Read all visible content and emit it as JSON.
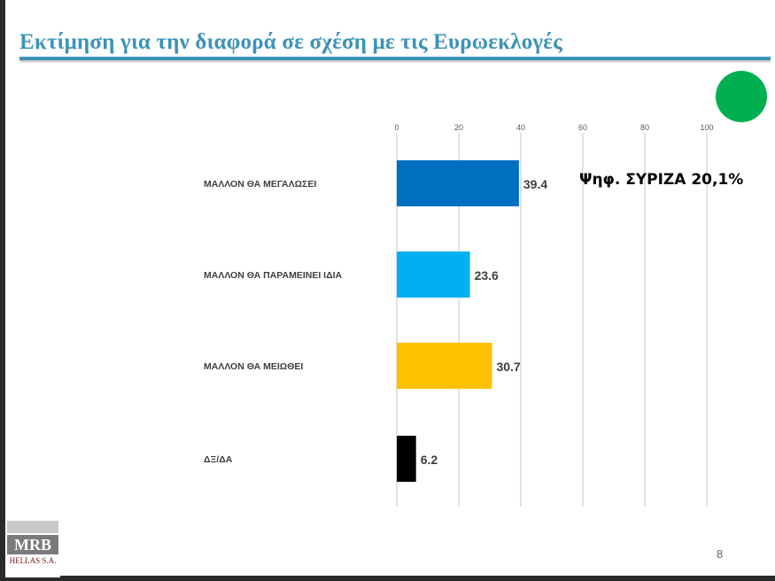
{
  "title": "Εκτίμηση για την διαφορά σε σχέση με τις Ευρωεκλογές",
  "note": "Ψηφ. ΣΥΡΙΖΑ 20,1%",
  "page_number": "8",
  "logo": {
    "name": "MRB",
    "sub": "HELLAS S.A."
  },
  "colors": {
    "title": "#3b93b8",
    "dot": "#00b050"
  },
  "chart_data": {
    "type": "bar",
    "orientation": "horizontal",
    "title": "",
    "xlabel": "",
    "ylabel": "",
    "xlim": [
      0,
      100
    ],
    "ticks": [
      0,
      20,
      40,
      60,
      80,
      100
    ],
    "tick_position": "top",
    "grid": true,
    "categories": [
      "ΜΑΛΛΟΝ ΘΑ ΜΕΓΑΛΩΣΕΙ",
      "ΜΑΛΛΟΝ ΘΑ ΠΑΡΑΜΕΙΝΕΙ ΙΔΙΑ",
      "ΜΑΛΛΟΝ ΘΑ ΜΕΙΩΘΕΙ",
      "ΔΞ/ΔΑ"
    ],
    "values": [
      39.4,
      23.6,
      30.7,
      6.2
    ],
    "value_labels": [
      "39.4",
      "23.6",
      "30.7",
      "6.2"
    ],
    "colors": [
      "#0070c0",
      "#00b0f0",
      "#ffc000",
      "#000000"
    ]
  }
}
